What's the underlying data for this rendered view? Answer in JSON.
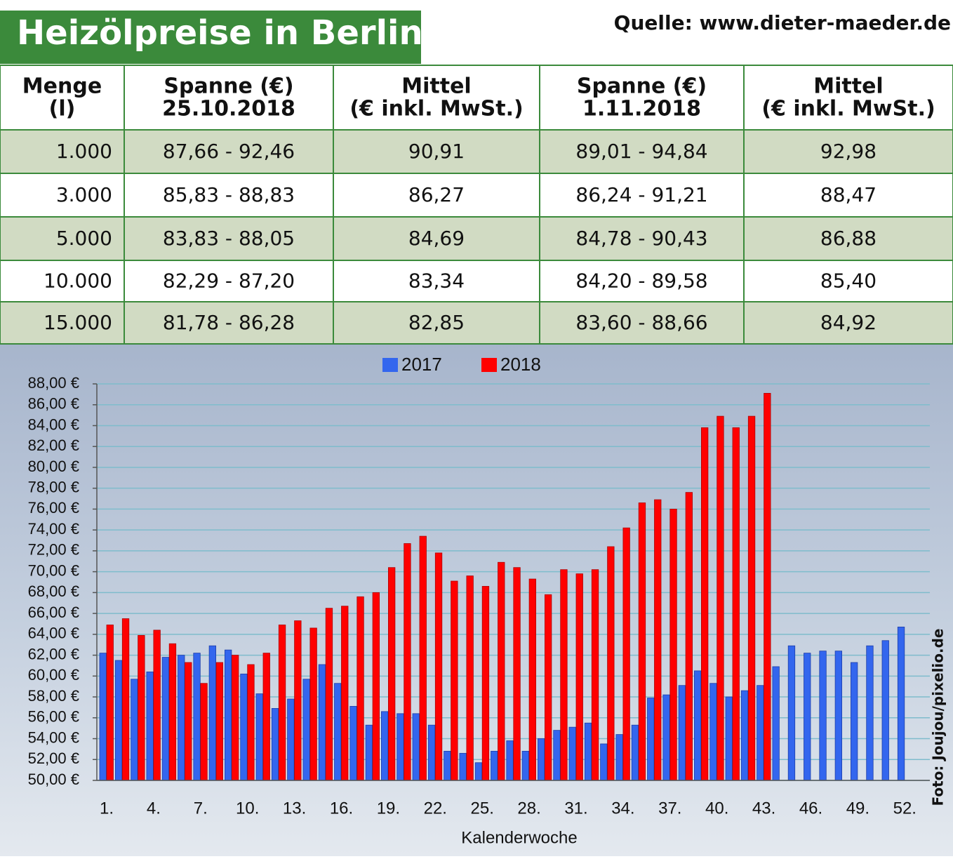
{
  "header": {
    "title": "Heizölpreise in Berlin",
    "source": "Quelle: www.dieter-maeder.de"
  },
  "table": {
    "header": [
      [
        "Menge",
        "(l)"
      ],
      [
        "Spanne (€)",
        "25.10.2018"
      ],
      [
        "Mittel",
        "(€ inkl. MwSt.)"
      ],
      [
        "Spanne (€)",
        "1.11.2018"
      ],
      [
        "Mittel",
        "(€ inkl. MwSt.)"
      ]
    ],
    "rows": [
      [
        "1.000",
        "87,66 - 92,46",
        "90,91",
        "89,01 - 94,84",
        "92,98"
      ],
      [
        "3.000",
        "85,83 - 88,83",
        "86,27",
        "86,24 - 91,21",
        "88,47"
      ],
      [
        "5.000",
        "83,83 - 88,05",
        "84,69",
        "84,78 - 90,43",
        "86,88"
      ],
      [
        "10.000",
        "82,29 - 87,20",
        "83,34",
        "84,20 - 89,58",
        "85,40"
      ],
      [
        "15.000",
        "81,78 - 86,28",
        "82,85",
        "83,60 - 88,66",
        "84,92"
      ]
    ]
  },
  "chart_data": {
    "type": "bar",
    "x_label": "Kalenderwoche",
    "annotation": "Foto: Joujou/pixelio.de",
    "categories": [
      "1.",
      null,
      null,
      "4.",
      null,
      null,
      "7.",
      null,
      null,
      "10.",
      null,
      null,
      "13.",
      null,
      null,
      "16.",
      null,
      null,
      "19.",
      null,
      null,
      "22.",
      null,
      null,
      "25.",
      null,
      null,
      "28.",
      null,
      null,
      "31.",
      null,
      null,
      "34.",
      null,
      null,
      "37.",
      null,
      null,
      "40.",
      null,
      null,
      "43.",
      null,
      null,
      "46.",
      null,
      null,
      "49.",
      null,
      null,
      "52."
    ],
    "series": [
      {
        "name": "2017",
        "color": "#3366ee",
        "values": [
          62.2,
          61.5,
          59.7,
          60.4,
          61.8,
          62.0,
          62.2,
          62.9,
          62.5,
          60.2,
          58.3,
          56.9,
          57.8,
          59.7,
          61.1,
          59.3,
          57.1,
          55.3,
          56.6,
          56.4,
          56.4,
          55.3,
          52.8,
          52.6,
          51.7,
          52.8,
          53.8,
          52.8,
          54.0,
          54.8,
          55.1,
          55.5,
          53.5,
          54.4,
          55.3,
          57.9,
          58.2,
          59.1,
          60.5,
          59.3,
          58.0,
          58.6,
          59.1,
          60.9,
          62.9,
          62.2,
          62.4,
          62.4,
          61.3,
          62.9,
          63.4,
          64.7
        ]
      },
      {
        "name": "2018",
        "color": "#ff0000",
        "values": [
          64.9,
          65.5,
          63.9,
          64.4,
          63.1,
          61.3,
          59.3,
          61.3,
          62.0,
          61.1,
          62.2,
          64.9,
          65.3,
          64.6,
          66.5,
          66.7,
          67.6,
          68.0,
          70.4,
          72.7,
          73.4,
          71.8,
          69.1,
          69.6,
          68.6,
          70.9,
          70.4,
          69.3,
          67.8,
          70.2,
          69.8,
          70.2,
          72.4,
          74.2,
          76.6,
          76.9,
          76.0,
          77.6,
          83.8,
          84.9,
          83.8,
          84.9,
          87.1,
          null,
          null,
          null,
          null,
          null,
          null,
          null,
          null,
          null
        ]
      }
    ],
    "ylim": [
      50,
      88
    ],
    "yticks": [
      {
        "value": 50,
        "label": "50,00 €"
      },
      {
        "value": 52,
        "label": "52,00 €"
      },
      {
        "value": 54,
        "label": "54,00 €"
      },
      {
        "value": 56,
        "label": "56,00 €"
      },
      {
        "value": 58,
        "label": "58,00 €"
      },
      {
        "value": 60,
        "label": "60,00 €"
      },
      {
        "value": 62,
        "label": "62,00 €"
      },
      {
        "value": 64,
        "label": "64,00 €"
      },
      {
        "value": 66,
        "label": "66,00 €"
      },
      {
        "value": 68,
        "label": "68,00 €"
      },
      {
        "value": 70,
        "label": "70,00 €"
      },
      {
        "value": 72,
        "label": "72,00 €"
      },
      {
        "value": 74,
        "label": "74,00 €"
      },
      {
        "value": 76,
        "label": "76,00 €"
      },
      {
        "value": 78,
        "label": "78,00 €"
      },
      {
        "value": 80,
        "label": "80,00 €"
      },
      {
        "value": 82,
        "label": "82,00 €"
      },
      {
        "value": 84,
        "label": "84,00 €"
      },
      {
        "value": 86,
        "label": "86,00 €"
      },
      {
        "value": 88,
        "label": "88,00 €"
      }
    ],
    "grid": true,
    "legend": "top"
  }
}
